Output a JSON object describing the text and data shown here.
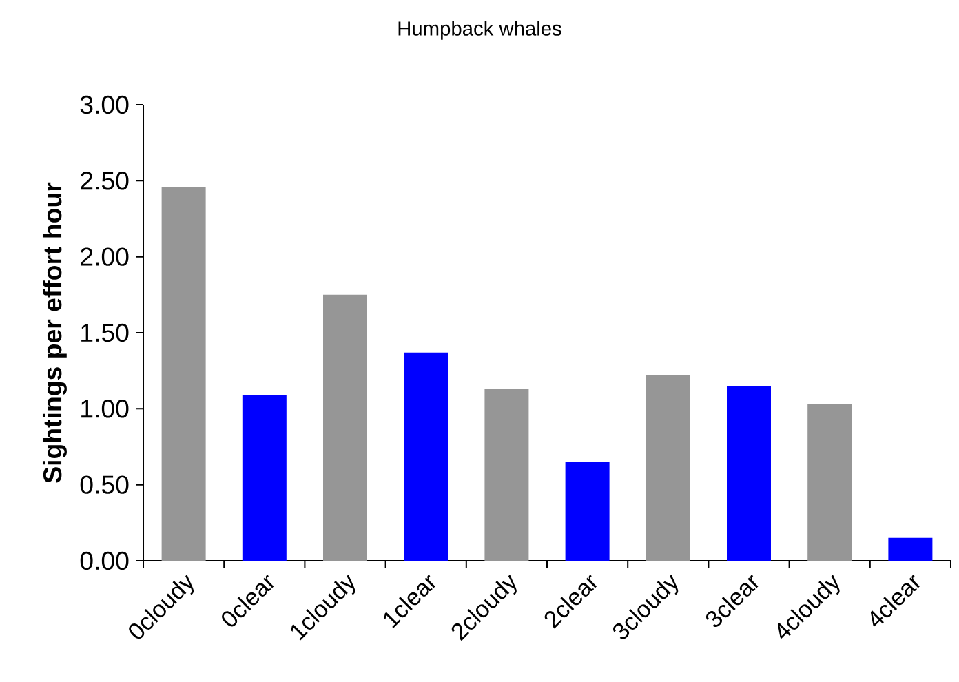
{
  "chart_data": {
    "type": "bar",
    "title": "Humpback whales",
    "ylabel": "Sightings per effort hour",
    "categories": [
      "0cloudy",
      "0clear",
      "1cloudy",
      "1clear",
      "2cloudy",
      "2clear",
      "3cloudy",
      "3clear",
      "4cloudy",
      "4clear"
    ],
    "values": [
      2.46,
      1.09,
      1.75,
      1.37,
      1.13,
      0.65,
      1.22,
      1.15,
      1.03,
      0.15
    ],
    "colors": [
      "#969696",
      "#0000ff",
      "#969696",
      "#0000ff",
      "#969696",
      "#0000ff",
      "#969696",
      "#0000ff",
      "#969696",
      "#0000ff"
    ],
    "ylim": [
      0,
      3
    ],
    "yticks": [
      {
        "value": 0,
        "label": "0.00"
      },
      {
        "value": 0.5,
        "label": "0.50"
      },
      {
        "value": 1,
        "label": "1.00"
      },
      {
        "value": 1.5,
        "label": "1.50"
      },
      {
        "value": 2,
        "label": "2.00"
      },
      {
        "value": 2.5,
        "label": "2.50"
      },
      {
        "value": 3,
        "label": "3.00"
      }
    ],
    "grid": false
  }
}
